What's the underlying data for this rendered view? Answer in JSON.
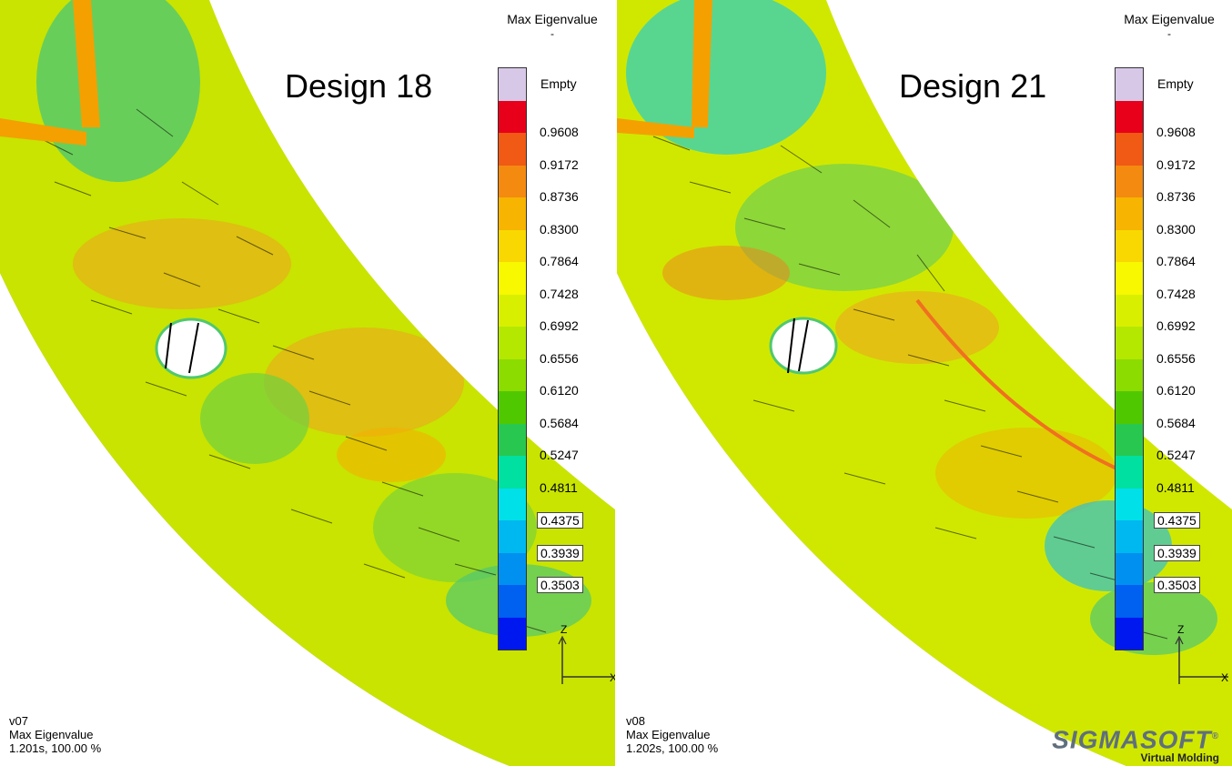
{
  "panels": [
    {
      "design_title": "Design 18",
      "legend_title": "Max Eigenvalue",
      "legend_unit": "-",
      "status": [
        "v07",
        "Max Eigenvalue",
        "1.201s, 100.00 %"
      ],
      "axes": {
        "z": "Z",
        "x": "X"
      }
    },
    {
      "design_title": "Design 21",
      "legend_title": "Max Eigenvalue",
      "legend_unit": "-",
      "status": [
        "v08",
        "Max Eigenvalue",
        "1.202s, 100.00 %"
      ],
      "axes": {
        "z": "Z",
        "x": "X"
      }
    }
  ],
  "legend": {
    "empty_label": "Empty",
    "labels": [
      "0.9608",
      "0.9172",
      "0.8736",
      "0.8300",
      "0.7864",
      "0.7428",
      "0.6992",
      "0.6556",
      "0.6120",
      "0.5684",
      "0.5247",
      "0.4811",
      "0.4375",
      "0.3939",
      "0.3503"
    ],
    "boxed_labels": [
      "0.4375",
      "0.3939",
      "0.3503"
    ],
    "colors": [
      "#d8c8e8",
      "#e8001a",
      "#f05a14",
      "#f48a10",
      "#f7b400",
      "#f8d800",
      "#f8f800",
      "#d8f000",
      "#b4e800",
      "#8cdc00",
      "#50c800",
      "#28c850",
      "#00e0a0",
      "#00e0e8",
      "#00b8f0",
      "#0090f0",
      "#0060f0",
      "#0018f0"
    ]
  },
  "logo": {
    "name": "SIGMASOFT",
    "registered": "®",
    "tagline": "Virtual Molding"
  }
}
